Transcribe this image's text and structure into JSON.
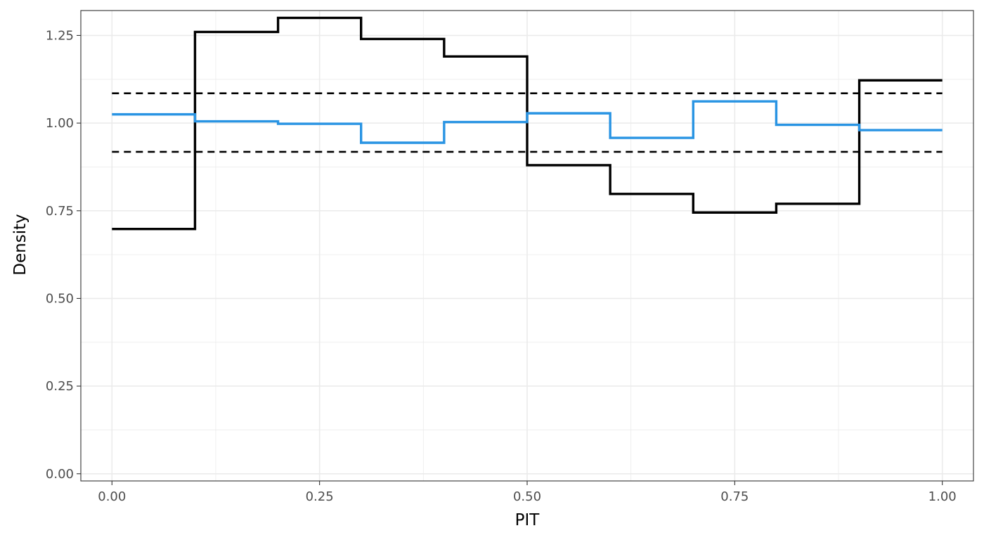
{
  "chart_data": {
    "type": "line",
    "title": "",
    "xlabel": "PIT",
    "ylabel": "Density",
    "xlim": [
      -0.0375,
      1.0375
    ],
    "ylim": [
      -0.0205,
      1.321
    ],
    "x_ticks": [
      "0.00",
      "0.25",
      "0.50",
      "0.75",
      "1.00"
    ],
    "y_ticks": [
      "0.00",
      "0.25",
      "0.50",
      "0.75",
      "1.00",
      "1.25"
    ],
    "grid": true,
    "bin_edges": [
      0.0,
      0.1,
      0.2,
      0.3,
      0.4,
      0.5,
      0.6,
      0.7,
      0.8,
      0.9,
      1.0
    ],
    "series": [
      {
        "style": "step",
        "color": "#000000",
        "values": [
          0.698,
          1.26,
          1.3,
          1.24,
          1.19,
          0.88,
          0.798,
          0.745,
          0.77,
          1.122
        ]
      },
      {
        "style": "step",
        "color": "#2994e3",
        "values": [
          1.025,
          1.005,
          0.998,
          0.944,
          1.003,
          1.028,
          0.958,
          1.062,
          0.995,
          0.98
        ]
      }
    ],
    "reference_lines": [
      {
        "style": "dashed",
        "color": "#000000",
        "y": 1.085
      },
      {
        "style": "dashed",
        "color": "#000000",
        "y": 0.918
      }
    ]
  }
}
